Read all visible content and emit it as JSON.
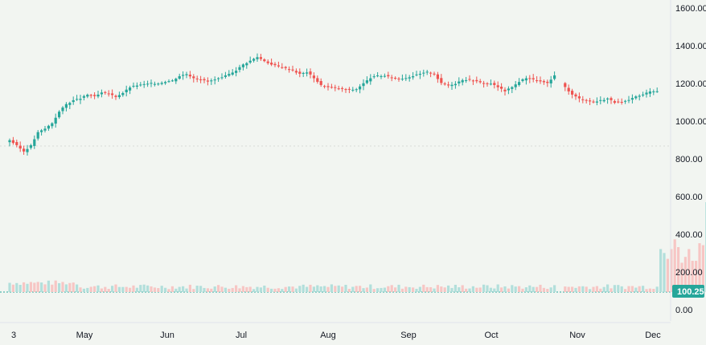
{
  "chart_data": {
    "type": "candlestick",
    "title": "",
    "xlabel": "",
    "ylabel": "",
    "ylim": [
      0,
      1600
    ],
    "y_ticks": [
      "1600.00",
      "1400.00",
      "1200.00",
      "1000.00",
      "800.00",
      "600.00",
      "400.00",
      "200.00",
      "0.00"
    ],
    "x_ticks": [
      "3",
      "May",
      "Jun",
      "Jul",
      "Aug",
      "Sep",
      "Oct",
      "Nov",
      "Dec"
    ],
    "grid": false,
    "legend": "none",
    "colors": {
      "up": "#26a69a",
      "down": "#ef5350",
      "up_volume": "#b2dfdb",
      "down_volume": "#f7c6c4",
      "axis_text": "#131722",
      "badge": "#26a69a"
    },
    "price_series": {
      "name": "",
      "close_path": [
        [
          0,
          900
        ],
        [
          2,
          870
        ],
        [
          4,
          840
        ],
        [
          6,
          870
        ],
        [
          8,
          940
        ],
        [
          10,
          960
        ],
        [
          12,
          990
        ],
        [
          14,
          1050
        ],
        [
          16,
          1090
        ],
        [
          18,
          1110
        ],
        [
          20,
          1120
        ],
        [
          22,
          1140
        ],
        [
          24,
          1130
        ],
        [
          26,
          1150
        ],
        [
          28,
          1145
        ],
        [
          30,
          1130
        ],
        [
          32,
          1150
        ],
        [
          34,
          1180
        ],
        [
          36,
          1190
        ],
        [
          38,
          1195
        ],
        [
          40,
          1200
        ],
        [
          42,
          1200
        ],
        [
          44,
          1210
        ],
        [
          46,
          1215
        ],
        [
          48,
          1240
        ],
        [
          50,
          1250
        ],
        [
          52,
          1230
        ],
        [
          54,
          1220
        ],
        [
          56,
          1210
        ],
        [
          58,
          1220
        ],
        [
          60,
          1230
        ],
        [
          62,
          1250
        ],
        [
          64,
          1270
        ],
        [
          66,
          1300
        ],
        [
          68,
          1320
        ],
        [
          70,
          1340
        ],
        [
          72,
          1320
        ],
        [
          74,
          1300
        ],
        [
          76,
          1290
        ],
        [
          78,
          1280
        ],
        [
          80,
          1270
        ],
        [
          82,
          1250
        ],
        [
          84,
          1260
        ],
        [
          86,
          1230
        ],
        [
          88,
          1190
        ],
        [
          90,
          1180
        ],
        [
          92,
          1175
        ],
        [
          94,
          1170
        ],
        [
          96,
          1165
        ],
        [
          98,
          1170
        ],
        [
          100,
          1200
        ],
        [
          102,
          1230
        ],
        [
          104,
          1240
        ],
        [
          106,
          1240
        ],
        [
          108,
          1230
        ],
        [
          110,
          1225
        ],
        [
          112,
          1230
        ],
        [
          114,
          1240
        ],
        [
          116,
          1250
        ],
        [
          118,
          1260
        ],
        [
          120,
          1250
        ],
        [
          122,
          1200
        ],
        [
          124,
          1190
        ],
        [
          126,
          1200
        ],
        [
          128,
          1220
        ],
        [
          130,
          1220
        ],
        [
          132,
          1210
        ],
        [
          134,
          1200
        ],
        [
          136,
          1200
        ],
        [
          138,
          1180
        ],
        [
          140,
          1160
        ],
        [
          142,
          1180
        ],
        [
          144,
          1210
        ],
        [
          146,
          1230
        ],
        [
          148,
          1220
        ],
        [
          150,
          1210
        ],
        [
          152,
          1200
        ],
        [
          154,
          1240
        ],
        [
          157,
          1180
        ],
        [
          159,
          1140
        ],
        [
          161,
          1120
        ],
        [
          163,
          1110
        ],
        [
          165,
          1100
        ],
        [
          167,
          1110
        ],
        [
          169,
          1120
        ],
        [
          171,
          1100
        ],
        [
          173,
          1100
        ],
        [
          175,
          1110
        ],
        [
          177,
          1130
        ],
        [
          179,
          1140
        ],
        [
          181,
          1160
        ],
        [
          183,
          1160
        ]
      ],
      "no_trading_gap": [
        155,
        156
      ]
    },
    "volume_series": {
      "name": "",
      "last_value": "100.25",
      "reference_level": 400,
      "recent_volumes": [
        220,
        200,
        170,
        220,
        270,
        230,
        150,
        180,
        220,
        160,
        160,
        250,
        240,
        460
      ]
    }
  }
}
